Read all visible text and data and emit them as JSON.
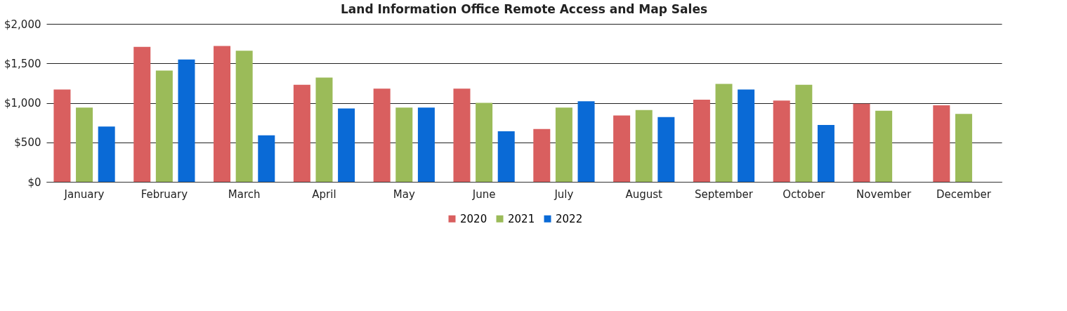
{
  "chart_data": {
    "type": "bar",
    "title": "Land Information Office Remote Access and Map Sales",
    "categories": [
      "January",
      "February",
      "March",
      "April",
      "May",
      "June",
      "July",
      "August",
      "September",
      "October",
      "November",
      "December"
    ],
    "series": [
      {
        "name": "2020",
        "color": "#d95f5f",
        "values": [
          1170,
          1710,
          1720,
          1230,
          1180,
          1180,
          670,
          840,
          1040,
          1030,
          990,
          970
        ]
      },
      {
        "name": "2021",
        "color": "#9bbb59",
        "values": [
          940,
          1410,
          1660,
          1320,
          940,
          1000,
          940,
          910,
          1240,
          1230,
          900,
          860
        ]
      },
      {
        "name": "2022",
        "color": "#0a6ad6",
        "values": [
          700,
          1550,
          590,
          930,
          940,
          640,
          1020,
          820,
          1170,
          720,
          null,
          null
        ]
      }
    ],
    "ylim": [
      0,
      2000
    ],
    "yticks": [
      {
        "value": 0,
        "label": "$0"
      },
      {
        "value": 500,
        "label": "$500"
      },
      {
        "value": 1000,
        "label": "$1,000"
      },
      {
        "value": 1500,
        "label": "$1,500"
      },
      {
        "value": 2000,
        "label": "$2,000"
      }
    ],
    "grid": "y",
    "legend": "bottom"
  }
}
